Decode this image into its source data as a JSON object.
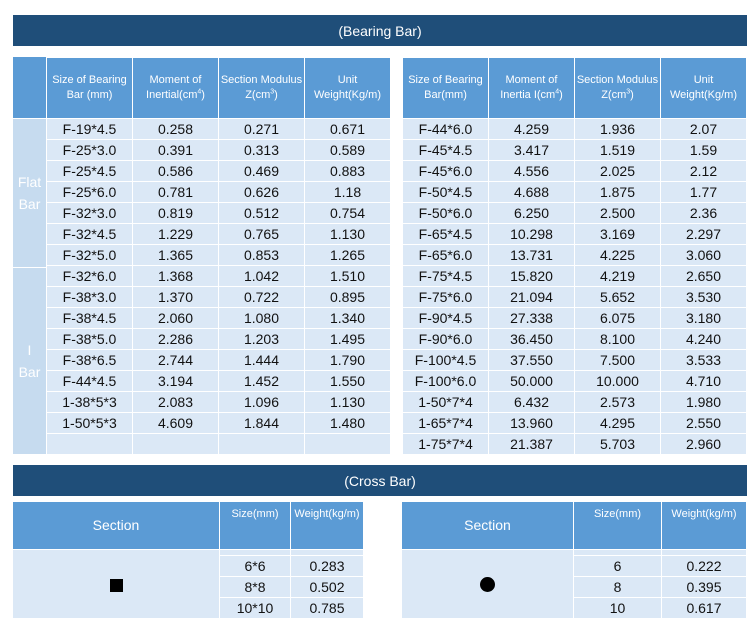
{
  "bearing_bar": {
    "title": "(Bearing Bar)",
    "group_flat": "Flat Bar",
    "group_ibar": "I Bar",
    "left_headers": {
      "size": "Size of Bearing Bar (mm)",
      "moment": "Moment of Inertial(cm",
      "moment_sup": "4",
      "moment_tail": ")",
      "modulus": "Section Modulus Z(cm",
      "modulus_sup": "3",
      "modulus_tail": ")",
      "weight": "Unit Weight(Kg/m)"
    },
    "right_headers": {
      "size": "Size of Bearing Bar(mm)",
      "moment": "Moment of Inertia I(cm",
      "moment_sup": "4",
      "moment_tail": ")",
      "modulus": "Section Modulus Z(cm",
      "modulus_sup": "3",
      "modulus_tail": ")",
      "weight": "Unit Weight(Kg/m)"
    },
    "left_rows": [
      [
        "F-19*4.5",
        "0.258",
        "0.271",
        "0.671"
      ],
      [
        "F-25*3.0",
        "0.391",
        "0.313",
        "0.589"
      ],
      [
        "F-25*4.5",
        "0.586",
        "0.469",
        "0.883"
      ],
      [
        "F-25*6.0",
        "0.781",
        "0.626",
        "1.18"
      ],
      [
        "F-32*3.0",
        "0.819",
        "0.512",
        "0.754"
      ],
      [
        "F-32*4.5",
        "1.229",
        "0.765",
        "1.130"
      ],
      [
        "F-32*5.0",
        "1.365",
        "0.853",
        "1.265"
      ],
      [
        "F-32*6.0",
        "1.368",
        "1.042",
        "1.510"
      ],
      [
        "F-38*3.0",
        "1.370",
        "0.722",
        "0.895"
      ],
      [
        "F-38*4.5",
        "2.060",
        "1.080",
        "1.340"
      ],
      [
        "F-38*5.0",
        "2.286",
        "1.203",
        "1.495"
      ],
      [
        "F-38*6.5",
        "2.744",
        "1.444",
        "1.790"
      ],
      [
        "F-44*4.5",
        "3.194",
        "1.452",
        "1.550"
      ],
      [
        "1-38*5*3",
        "2.083",
        "1.096",
        "1.130"
      ],
      [
        "1-50*5*3",
        "4.609",
        "1.844",
        "1.480"
      ],
      [
        "",
        "",
        "",
        ""
      ]
    ],
    "right_rows": [
      [
        "F-44*6.0",
        "4.259",
        "1.936",
        "2.07"
      ],
      [
        "F-45*4.5",
        "3.417",
        "1.519",
        "1.59"
      ],
      [
        "F-45*6.0",
        "4.556",
        "2.025",
        "2.12"
      ],
      [
        "F-50*4.5",
        "4.688",
        "1.875",
        "1.77"
      ],
      [
        "F-50*6.0",
        "6.250",
        "2.500",
        "2.36"
      ],
      [
        "F-65*4.5",
        "10.298",
        "3.169",
        "2.297"
      ],
      [
        "F-65*6.0",
        "13.731",
        "4.225",
        "3.060"
      ],
      [
        "F-75*4.5",
        "15.820",
        "4.219",
        "2.650"
      ],
      [
        "F-75*6.0",
        "21.094",
        "5.652",
        "3.530"
      ],
      [
        "F-90*4.5",
        "27.338",
        "6.075",
        "3.180"
      ],
      [
        "F-90*6.0",
        "36.450",
        "8.100",
        "4.240"
      ],
      [
        "F-100*4.5",
        "37.550",
        "7.500",
        "3.533"
      ],
      [
        "F-100*6.0",
        "50.000",
        "10.000",
        "4.710"
      ],
      [
        "1-50*7*4",
        "6.432",
        "2.573",
        "1.980"
      ],
      [
        "1-65*7*4",
        "13.960",
        "4.295",
        "2.550"
      ],
      [
        "1-75*7*4",
        "21.387",
        "5.703",
        "2.960"
      ]
    ]
  },
  "cross_bar": {
    "title": "(Cross Bar)",
    "left": {
      "headers": {
        "section": "Section",
        "size": "Size(mm)",
        "weight": "Weight(kg/m)"
      },
      "icon": "square-icon",
      "rows": [
        [
          "6*6",
          "0.283"
        ],
        [
          "8*8",
          "0.502"
        ],
        [
          "10*10",
          "0.785"
        ]
      ]
    },
    "right": {
      "headers": {
        "section": "Section",
        "size": "Size(mm)",
        "weight": "Weight(kg/m)"
      },
      "icon": "circle-icon",
      "rows": [
        [
          "6",
          "0.222"
        ],
        [
          "8",
          "0.395"
        ],
        [
          "10",
          "0.617"
        ]
      ]
    }
  },
  "colors": {
    "banner": "#1f4e79",
    "header": "#5b9bd5",
    "cell": "#dbe8f6",
    "side": "#c6dbef"
  }
}
